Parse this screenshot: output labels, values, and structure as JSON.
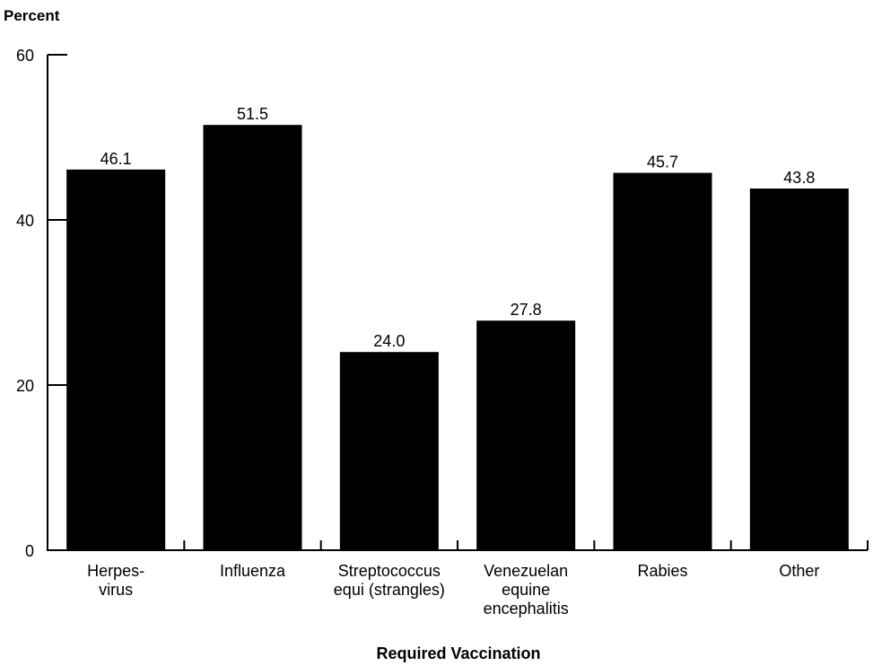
{
  "chart_data": {
    "type": "bar",
    "title": "",
    "ylabel": "Percent",
    "xlabel": "Required Vaccination",
    "ylim": [
      0,
      60
    ],
    "yticks": [
      0,
      20,
      40,
      60
    ],
    "grid": false,
    "categories": [
      [
        "Herpes-",
        "virus"
      ],
      [
        "Influenza"
      ],
      [
        "Streptococcus",
        "equi (strangles)"
      ],
      [
        "Venezuelan",
        "equine",
        "encephalitis"
      ],
      [
        "Rabies"
      ],
      [
        "Other"
      ]
    ],
    "values": [
      46.1,
      51.5,
      24.0,
      27.8,
      45.7,
      43.8
    ],
    "value_labels": [
      "46.1",
      "51.5",
      "24.0",
      "27.8",
      "45.7",
      "43.8"
    ],
    "bar_color": "#000000"
  }
}
